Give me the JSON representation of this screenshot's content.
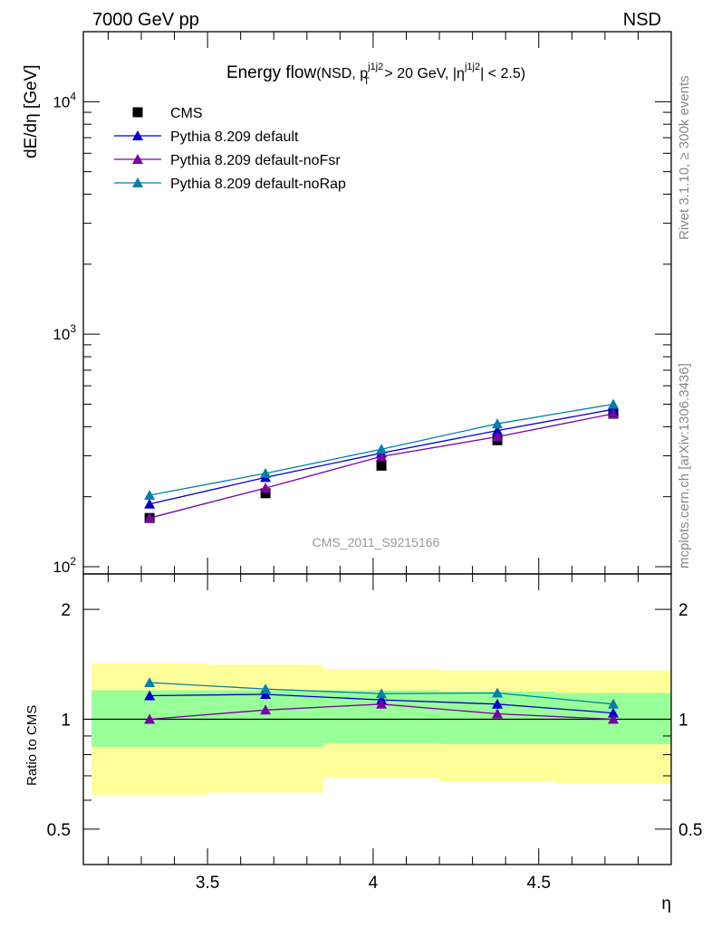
{
  "header": {
    "left": "7000 GeV pp",
    "right": "NSD"
  },
  "side_labels": {
    "rivet": "Rivet 3.1.10, ≥ 300k events",
    "mcplots": "mcplots.cern.ch [arXiv:1306.3436]"
  },
  "watermark": "CMS_2011_S9215166",
  "title": {
    "main": "Energy flow",
    "sub_prefix": "(NSD, p",
    "sub_sup1": "j1j2",
    "sub_sub1": "T",
    "sub_mid": " > 20 GeV, |η",
    "sub_sup2": "j1j2",
    "sub_suffix": "| < 2.5)"
  },
  "colors": {
    "cms": "#000000",
    "default": "#0000cc",
    "noFsr": "#7a00a8",
    "noRap": "#0080a8",
    "band_inner": "#99ff99",
    "band_outer": "#ffff99"
  },
  "chart_data": [
    {
      "type": "line",
      "panel": "main",
      "ylabel": "dE/dη [GeV]",
      "yscale": "log",
      "ylim": [
        100,
        20000
      ],
      "xlim": [
        3.125,
        4.9
      ],
      "yticks": [
        {
          "value": 100,
          "base": "10",
          "exp": "2"
        },
        {
          "value": 1000,
          "base": "10",
          "exp": "3"
        },
        {
          "value": 10000,
          "base": "10",
          "exp": "4"
        }
      ],
      "legend_position": "top-left",
      "x": [
        3.325,
        3.675,
        4.025,
        4.375,
        4.725
      ],
      "series": [
        {
          "name": "CMS",
          "key": "cms",
          "marker": "square",
          "line": false,
          "values": [
            162,
            207,
            272,
            350,
            455
          ]
        },
        {
          "name": "Pythia 8.209 default",
          "key": "default",
          "marker": "triangle",
          "line": true,
          "values": [
            186,
            242,
            308,
            385,
            475
          ]
        },
        {
          "name": "Pythia 8.209 default-noFsr",
          "key": "noFsr",
          "marker": "triangle",
          "line": true,
          "values": [
            162,
            218,
            298,
            362,
            455
          ]
        },
        {
          "name": "Pythia 8.209 default-noRap",
          "key": "noRap",
          "marker": "triangle",
          "line": true,
          "values": [
            203,
            252,
            320,
            412,
            500
          ]
        }
      ]
    },
    {
      "type": "line",
      "panel": "ratio",
      "ylabel": "Ratio to CMS",
      "xlabel": "η",
      "ylim": [
        0.4,
        2.5
      ],
      "xlim": [
        3.125,
        4.9
      ],
      "yticks": [
        0.5,
        1,
        2
      ],
      "xticks": [
        3.5,
        4,
        4.5
      ],
      "bands": [
        {
          "xlow": 3.15,
          "xhigh": 3.5,
          "inner": [
            0.84,
            1.2
          ],
          "outer": [
            0.62,
            1.42
          ]
        },
        {
          "xlow": 3.5,
          "xhigh": 3.85,
          "inner": [
            0.84,
            1.2
          ],
          "outer": [
            0.63,
            1.41
          ]
        },
        {
          "xlow": 3.85,
          "xhigh": 4.2,
          "inner": [
            0.86,
            1.2
          ],
          "outer": [
            0.69,
            1.37
          ]
        },
        {
          "xlow": 4.2,
          "xhigh": 4.55,
          "inner": [
            0.855,
            1.19
          ],
          "outer": [
            0.675,
            1.36
          ]
        },
        {
          "xlow": 4.55,
          "xhigh": 4.9,
          "inner": [
            0.855,
            1.18
          ],
          "outer": [
            0.665,
            1.36
          ]
        }
      ],
      "x": [
        3.325,
        3.675,
        4.025,
        4.375,
        4.725
      ],
      "series": [
        {
          "name": "Pythia 8.209 default",
          "key": "default",
          "values": [
            1.16,
            1.17,
            1.13,
            1.1,
            1.04
          ]
        },
        {
          "name": "Pythia 8.209 default-noFsr",
          "key": "noFsr",
          "values": [
            1.0,
            1.06,
            1.1,
            1.035,
            1.0
          ]
        },
        {
          "name": "Pythia 8.209 default-noRap",
          "key": "noRap",
          "values": [
            1.26,
            1.21,
            1.175,
            1.18,
            1.1
          ]
        }
      ]
    }
  ]
}
